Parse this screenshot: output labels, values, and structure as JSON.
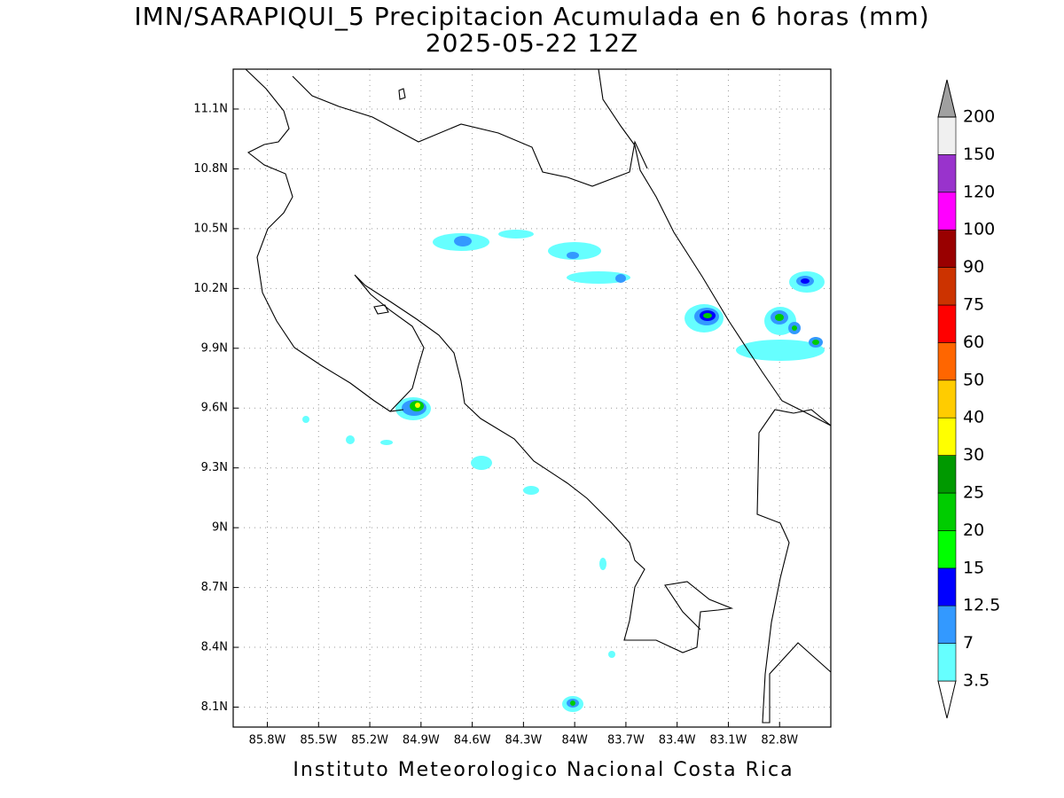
{
  "title": "IMN/SARAPIQUI_5 Precipitacion Acumulada en 6 horas (mm)",
  "subtitle": "2025-05-22 12Z",
  "footer": "Instituto Meteorologico Nacional Costa Rica",
  "map": {
    "xlim": [
      -86,
      -82.5
    ],
    "ylim": [
      8,
      11.3
    ],
    "grid": true,
    "xticks": [
      {
        "value": -85.8,
        "label": "85.8W"
      },
      {
        "value": -85.5,
        "label": "85.5W"
      },
      {
        "value": -85.2,
        "label": "85.2W"
      },
      {
        "value": -84.9,
        "label": "84.9W"
      },
      {
        "value": -84.6,
        "label": "84.6W"
      },
      {
        "value": -84.3,
        "label": "84.3W"
      },
      {
        "value": -84,
        "label": "84W"
      },
      {
        "value": -83.7,
        "label": "83.7W"
      },
      {
        "value": -83.4,
        "label": "83.4W"
      },
      {
        "value": -83.1,
        "label": "83.1W"
      },
      {
        "value": -82.8,
        "label": "82.8W"
      }
    ],
    "yticks": [
      {
        "value": 8.1,
        "label": "8.1N"
      },
      {
        "value": 8.4,
        "label": "8.4N"
      },
      {
        "value": 8.7,
        "label": "8.7N"
      },
      {
        "value": 9,
        "label": "9N"
      },
      {
        "value": 9.3,
        "label": "9.3N"
      },
      {
        "value": 9.6,
        "label": "9.6N"
      },
      {
        "value": 9.9,
        "label": "9.9N"
      },
      {
        "value": 10.2,
        "label": "10.2N"
      },
      {
        "value": 10.5,
        "label": "10.5N"
      },
      {
        "value": 10.8,
        "label": "10.8N"
      },
      {
        "value": 11.1,
        "label": "11.1N"
      }
    ]
  },
  "legend": {
    "levels": [
      3.5,
      7,
      12.5,
      15,
      20,
      25,
      30,
      40,
      50,
      60,
      75,
      90,
      100,
      120,
      150,
      200
    ],
    "colors": [
      "#ffffff",
      "#66ffff",
      "#3399ff",
      "#0000ff",
      "#00ff00",
      "#00cc00",
      "#009900",
      "#ffff00",
      "#ffcc00",
      "#ff6600",
      "#ff0000",
      "#cc3300",
      "#990000",
      "#ff00ff",
      "#9933cc",
      "#f0f0f0",
      "#a0a0a0"
    ]
  }
}
